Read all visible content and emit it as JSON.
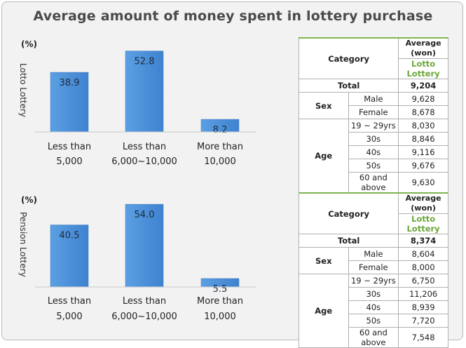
{
  "title": "Average amount of money spent in lottery purchase",
  "chart_data": [
    {
      "type": "bar",
      "ylabel": "Lotto Lottery",
      "unit": "(%)",
      "categories": [
        [
          "Less than",
          "5,000"
        ],
        [
          "Less than",
          "6,000~10,000"
        ],
        [
          "More than",
          "10,000"
        ]
      ],
      "values": [
        38.9,
        52.8,
        8.2
      ],
      "ylim": [
        0,
        60
      ],
      "color": "#4a90d9"
    },
    {
      "type": "bar",
      "ylabel": "Pension Lottery",
      "unit": "(%)",
      "categories": [
        [
          "Less than",
          "5,000"
        ],
        [
          "Less than",
          "6,000~10,000"
        ],
        [
          "More than",
          "10,000"
        ]
      ],
      "values": [
        40.5,
        54.0,
        5.5
      ],
      "ylim": [
        0,
        60
      ],
      "color": "#4a90d9"
    }
  ],
  "tables": [
    {
      "category_header": "Category",
      "avg_header_line1": "Average",
      "avg_header_line2": "(won)",
      "lottery_name": "Lotto Lottery",
      "total_label": "Total",
      "total_value": "9,204",
      "sex_label": "Sex",
      "sex_rows": [
        [
          "Male",
          "9,628"
        ],
        [
          "Female",
          "8,678"
        ]
      ],
      "age_label": "Age",
      "age_rows": [
        [
          "19 ~ 29yrs",
          "8,030"
        ],
        [
          "30s",
          "8,846"
        ],
        [
          "40s",
          "9,116"
        ],
        [
          "50s",
          "9,676"
        ],
        [
          "60 and above",
          "9,630"
        ]
      ]
    },
    {
      "category_header": "Category",
      "avg_header_line1": "Average",
      "avg_header_line2": "(won)",
      "lottery_name": "Lotto Lottery",
      "total_label": "Total",
      "total_value": "8,374",
      "sex_label": "Sex",
      "sex_rows": [
        [
          "Male",
          "8,604"
        ],
        [
          "Female",
          "8,000"
        ]
      ],
      "age_label": "Age",
      "age_rows": [
        [
          "19 ~ 29yrs",
          "6,750"
        ],
        [
          "30s",
          "11,206"
        ],
        [
          "40s",
          "8,939"
        ],
        [
          "50s",
          "7,720"
        ],
        [
          "60 and above",
          "7,548"
        ]
      ]
    }
  ]
}
